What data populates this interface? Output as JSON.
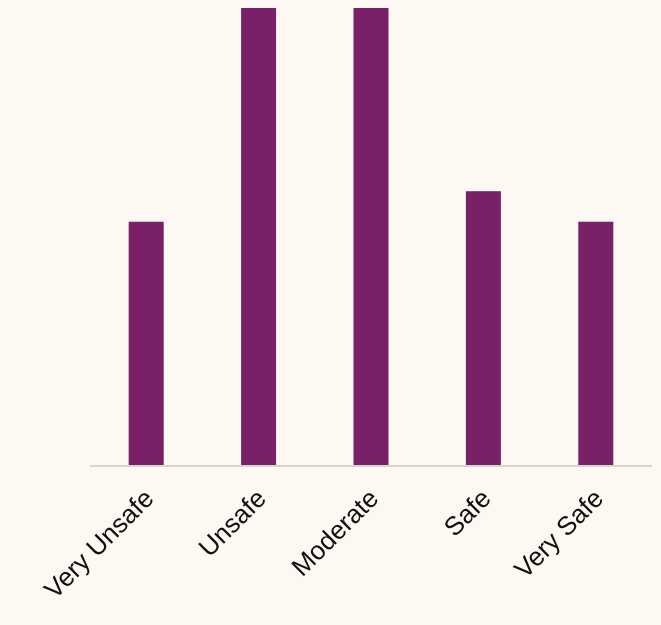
{
  "chart_data": {
    "type": "bar",
    "categories": [
      "Very Unsafe",
      "Unsafe",
      "Moderate",
      "Safe",
      "Very Safe"
    ],
    "values": [
      8,
      15,
      15,
      9,
      8
    ],
    "ylim": [
      0,
      15
    ],
    "grid": false,
    "legend": "none",
    "xlabel": "",
    "ylabel": "",
    "title": "",
    "colors": {
      "bar": "#7a2069",
      "axis": "#d9d4cf",
      "background": "#fdf8f1",
      "text": "#111111"
    }
  }
}
